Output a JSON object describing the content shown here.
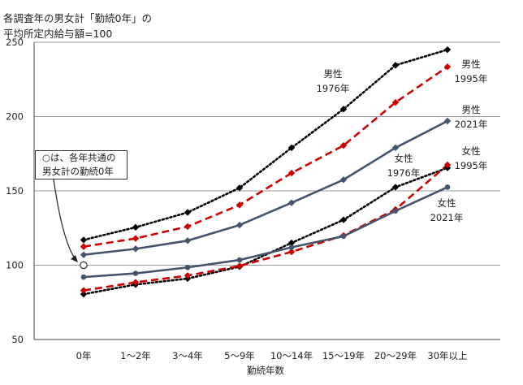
{
  "title_lines": [
    "各調査年の男女計「勤続0年」の",
    "平均所定内給与額=100"
  ],
  "callout": [
    "○は、各年共通の",
    "男女計の勤続0年"
  ],
  "chart_data": {
    "type": "line",
    "title": "各調査年の男女計「勤続0年」の平均所定内給与額=100",
    "xlabel": "勤続年数",
    "ylabel": "",
    "categories": [
      "0年",
      "1～2年",
      "3～4年",
      "5～9年",
      "10～14年",
      "15～19年",
      "20～29年",
      "30年以上"
    ],
    "ylim": [
      50,
      250
    ],
    "yticks": [
      50,
      100,
      150,
      200,
      250
    ],
    "grid": true,
    "reference_point": {
      "category": "0年",
      "value": 100
    },
    "series": [
      {
        "name": "男性 1976年",
        "label_lines": [
          "男性",
          "1976年"
        ],
        "color": "#000000",
        "style": "dotted",
        "marker": "diamond",
        "values": [
          117,
          125.5,
          135.5,
          152,
          179,
          205,
          234.5,
          245
        ]
      },
      {
        "name": "男性 1995年",
        "label_lines": [
          "男性",
          "1995年"
        ],
        "color": "#cc0000",
        "style": "dashed",
        "marker": "diamond",
        "values": [
          112.5,
          118,
          126,
          140.5,
          162,
          180.5,
          209.5,
          233.5
        ]
      },
      {
        "name": "男性 2021年",
        "label_lines": [
          "男性",
          "2021年"
        ],
        "color": "#44546a",
        "style": "solid",
        "marker": "diamond",
        "values": [
          107,
          111,
          116.5,
          127,
          142,
          157.5,
          179,
          197
        ]
      },
      {
        "name": "女性 1976年",
        "label_lines": [
          "女性",
          "1976年"
        ],
        "color": "#000000",
        "style": "dotted",
        "marker": "diamond",
        "values": [
          80.5,
          87,
          91,
          99,
          115,
          130.5,
          152.5,
          165.5
        ]
      },
      {
        "name": "女性 1995年",
        "label_lines": [
          "女性",
          "1995年"
        ],
        "color": "#cc0000",
        "style": "dashed",
        "marker": "diamond",
        "values": [
          83,
          88.5,
          93,
          99.5,
          109,
          120,
          137.5,
          167.5
        ]
      },
      {
        "name": "女性 2021年",
        "label_lines": [
          "女性",
          "2021年"
        ],
        "color": "#44546a",
        "style": "solid",
        "marker": "circle",
        "values": [
          92,
          94.5,
          98.5,
          103.5,
          112,
          119.5,
          136.5,
          152.5
        ]
      }
    ]
  }
}
